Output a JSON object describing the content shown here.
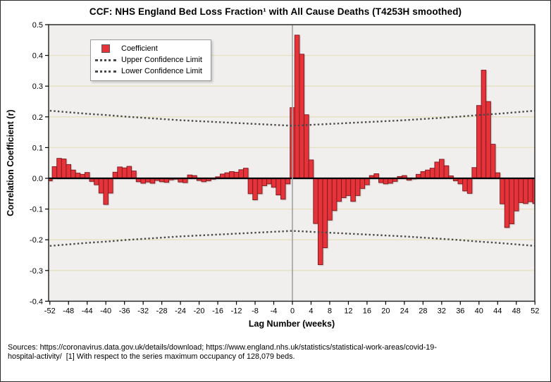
{
  "title": "CCF: NHS England Bed Loss Fraction¹ with All Cause Deaths (T4253H smoothed)",
  "legend": {
    "coefficient_label": "Coefficient",
    "upper_label": "Upper Confidence Limit",
    "lower_label": "Lower Confidence Limit"
  },
  "footer": {
    "lines": [
      "Sources: https://coronavirus.data.gov.uk/details/download; https://www.england.nhs.uk/statistics/statistical-work-areas/covid-19-",
      "hospital-activity/  [1] With respect to the series maximum occupancy of 128,079 beds."
    ]
  },
  "colors": {
    "bar_fill": "#e6333a",
    "bar_stroke": "#7a1a20",
    "plot_bg": "#f0efed",
    "gridline": "#e5e1be",
    "confidence_line": "#4a4a4a",
    "zero_line": "#000000",
    "ref_line": "#a0a0a0",
    "frame": "#2b2b2b"
  },
  "chart_data": {
    "type": "bar",
    "title": "CCF: NHS England Bed Loss Fraction¹ with All Cause Deaths (T4253H smoothed)",
    "xlabel": "Lag Number (weeks)",
    "ylabel": "Correlation Coefficient (r)",
    "ylim": [
      -0.4,
      0.5
    ],
    "yticks": [
      0.5,
      0.4,
      0.3,
      0.2,
      0.1,
      0.0,
      -0.1,
      -0.2,
      -0.3,
      -0.4
    ],
    "ytick_labels": [
      "0.5",
      "0.4",
      "0.3",
      "0.2",
      "0.1",
      "0.0",
      "-0.1",
      "-0.2",
      "-0.3",
      "-0.4"
    ],
    "gridlines_at": [
      0.4,
      0.3,
      0.2,
      0.1,
      -0.1,
      -0.2,
      -0.3
    ],
    "grid": true,
    "legend_position": "top-left",
    "xticks": [
      -52,
      -48,
      -44,
      -40,
      -36,
      -32,
      -28,
      -24,
      -20,
      -16,
      -12,
      -8,
      -4,
      0,
      4,
      8,
      12,
      16,
      20,
      24,
      28,
      32,
      36,
      40,
      44,
      48,
      52
    ],
    "lags": {
      "from": -52,
      "to": 52,
      "step": 1
    },
    "reference_line_at_lag": 0,
    "coefficients": [
      -0.008,
      0.038,
      0.065,
      0.063,
      0.045,
      0.027,
      0.017,
      0.013,
      0.019,
      -0.01,
      -0.021,
      -0.048,
      -0.085,
      -0.048,
      0.02,
      0.037,
      0.034,
      0.039,
      0.024,
      -0.011,
      -0.016,
      -0.012,
      -0.016,
      -0.007,
      -0.011,
      -0.013,
      -0.005,
      -0.003,
      -0.012,
      -0.014,
      0.011,
      0.009,
      -0.007,
      -0.011,
      -0.008,
      -0.003,
      0.005,
      0.014,
      0.018,
      0.022,
      0.02,
      0.028,
      0.033,
      -0.05,
      -0.07,
      -0.05,
      -0.024,
      -0.018,
      -0.029,
      -0.054,
      -0.068,
      -0.018,
      0.23,
      0.466,
      0.404,
      0.207,
      0.06,
      -0.147,
      -0.281,
      -0.226,
      -0.136,
      -0.105,
      -0.075,
      -0.063,
      -0.056,
      -0.075,
      -0.056,
      -0.033,
      -0.021,
      0.009,
      0.015,
      -0.014,
      -0.018,
      -0.016,
      -0.01,
      0.006,
      0.009,
      -0.006,
      -0.002,
      0.013,
      0.022,
      0.027,
      0.033,
      0.053,
      0.062,
      0.041,
      0.008,
      -0.008,
      -0.018,
      -0.041,
      -0.049,
      0.035,
      0.237,
      0.352,
      0.25,
      0.111,
      0.018,
      -0.083,
      -0.16,
      -0.148,
      -0.106,
      -0.079,
      -0.082,
      -0.076,
      -0.082
    ],
    "confidence_limits": {
      "x": [
        -52,
        -48,
        -44,
        -40,
        -36,
        -32,
        -28,
        -24,
        -20,
        -16,
        -12,
        -8,
        -4,
        0,
        4,
        8,
        12,
        16,
        20,
        24,
        28,
        32,
        36,
        40,
        44,
        48,
        52
      ],
      "upper": [
        0.22,
        0.215,
        0.21,
        0.206,
        0.201,
        0.197,
        0.193,
        0.189,
        0.186,
        0.183,
        0.18,
        0.177,
        0.174,
        0.171,
        0.174,
        0.177,
        0.18,
        0.183,
        0.186,
        0.189,
        0.193,
        0.197,
        0.201,
        0.206,
        0.21,
        0.215,
        0.22
      ],
      "lower": [
        -0.22,
        -0.215,
        -0.21,
        -0.206,
        -0.201,
        -0.197,
        -0.193,
        -0.189,
        -0.186,
        -0.183,
        -0.18,
        -0.177,
        -0.174,
        -0.171,
        -0.174,
        -0.177,
        -0.18,
        -0.183,
        -0.186,
        -0.189,
        -0.193,
        -0.197,
        -0.201,
        -0.206,
        -0.21,
        -0.215,
        -0.22
      ]
    }
  }
}
